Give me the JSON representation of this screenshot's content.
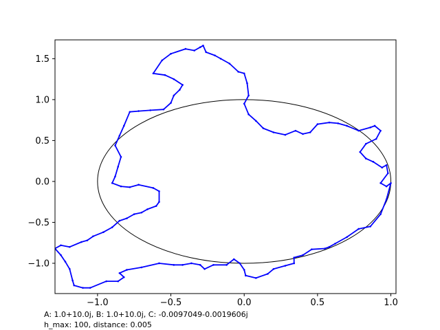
{
  "chart_data": {
    "type": "line",
    "xlim": [
      -1.29,
      1.035
    ],
    "ylim": [
      -1.37,
      1.73
    ],
    "xticks": [
      -1.0,
      -0.5,
      0.0,
      0.5,
      1.0
    ],
    "xtick_labels": [
      "−1.0",
      "−0.5",
      "0.0",
      "0.5",
      "1.0"
    ],
    "yticks": [
      -1.0,
      -0.5,
      0.0,
      0.5,
      1.0,
      1.5
    ],
    "ytick_labels": [
      "−1.0",
      "−0.5",
      "0.0",
      "0.5",
      "1.0",
      "1.5"
    ],
    "grid": false,
    "series": [
      {
        "kind": "circle",
        "color": "#000000",
        "center": [
          0,
          0
        ],
        "radius": 1.0
      },
      {
        "kind": "closed-curve",
        "color": "#0000ff",
        "markers": true,
        "points": [
          [
            1.0,
            -0.02
          ],
          [
            0.97,
            -0.22
          ],
          [
            0.93,
            -0.4
          ],
          [
            0.86,
            -0.55
          ],
          [
            0.78,
            -0.58
          ],
          [
            0.7,
            -0.68
          ],
          [
            0.62,
            -0.76
          ],
          [
            0.58,
            -0.8
          ],
          [
            0.55,
            -0.82
          ],
          [
            0.46,
            -0.83
          ],
          [
            0.4,
            -0.9
          ],
          [
            0.34,
            -0.93
          ],
          [
            0.34,
            -1.0
          ],
          [
            0.28,
            -1.03
          ],
          [
            0.2,
            -1.07
          ],
          [
            0.16,
            -1.13
          ],
          [
            0.08,
            -1.18
          ],
          [
            0.01,
            -1.15
          ],
          [
            0.0,
            -1.08
          ],
          [
            -0.03,
            -1.0
          ],
          [
            -0.07,
            -0.95
          ],
          [
            -0.12,
            -1.02
          ],
          [
            -0.21,
            -1.02
          ],
          [
            -0.27,
            -1.07
          ],
          [
            -0.3,
            -1.02
          ],
          [
            -0.36,
            -1.0
          ],
          [
            -0.42,
            -1.02
          ],
          [
            -0.48,
            -1.02
          ],
          [
            -0.58,
            -1.0
          ],
          [
            -0.7,
            -1.05
          ],
          [
            -0.8,
            -1.08
          ],
          [
            -0.85,
            -1.12
          ],
          [
            -0.82,
            -1.17
          ],
          [
            -0.86,
            -1.22
          ],
          [
            -0.94,
            -1.22
          ],
          [
            -1.05,
            -1.3
          ],
          [
            -1.1,
            -1.3
          ],
          [
            -1.16,
            -1.27
          ],
          [
            -1.17,
            -1.21
          ],
          [
            -1.19,
            -1.07
          ],
          [
            -1.22,
            -0.98
          ],
          [
            -1.25,
            -0.9
          ],
          [
            -1.29,
            -0.82
          ],
          [
            -1.25,
            -0.78
          ],
          [
            -1.19,
            -0.8
          ],
          [
            -1.11,
            -0.74
          ],
          [
            -1.07,
            -0.72
          ],
          [
            -1.03,
            -0.67
          ],
          [
            -0.96,
            -0.62
          ],
          [
            -0.9,
            -0.56
          ],
          [
            -0.85,
            -0.48
          ],
          [
            -0.8,
            -0.45
          ],
          [
            -0.75,
            -0.4
          ],
          [
            -0.7,
            -0.38
          ],
          [
            -0.66,
            -0.34
          ],
          [
            -0.6,
            -0.3
          ],
          [
            -0.58,
            -0.25
          ],
          [
            -0.58,
            -0.12
          ],
          [
            -0.62,
            -0.08
          ],
          [
            -0.72,
            -0.04
          ],
          [
            -0.78,
            -0.07
          ],
          [
            -0.84,
            -0.06
          ],
          [
            -0.9,
            -0.02
          ],
          [
            -0.88,
            0.06
          ],
          [
            -0.86,
            0.18
          ],
          [
            -0.84,
            0.3
          ],
          [
            -0.88,
            0.44
          ],
          [
            -0.85,
            0.56
          ],
          [
            -0.82,
            0.68
          ],
          [
            -0.78,
            0.85
          ],
          [
            -0.72,
            0.86
          ],
          [
            -0.64,
            0.87
          ],
          [
            -0.55,
            0.88
          ],
          [
            -0.5,
            0.96
          ],
          [
            -0.48,
            1.05
          ],
          [
            -0.44,
            1.12
          ],
          [
            -0.42,
            1.18
          ],
          [
            -0.48,
            1.25
          ],
          [
            -0.54,
            1.3
          ],
          [
            -0.62,
            1.32
          ],
          [
            -0.56,
            1.48
          ],
          [
            -0.5,
            1.56
          ],
          [
            -0.4,
            1.62
          ],
          [
            -0.34,
            1.6
          ],
          [
            -0.3,
            1.64
          ],
          [
            -0.28,
            1.66
          ],
          [
            -0.26,
            1.58
          ],
          [
            -0.2,
            1.54
          ],
          [
            -0.16,
            1.5
          ],
          [
            -0.1,
            1.44
          ],
          [
            -0.04,
            1.34
          ],
          [
            0.0,
            1.32
          ],
          [
            0.02,
            1.2
          ],
          [
            0.03,
            1.05
          ],
          [
            0.0,
            0.95
          ],
          [
            0.03,
            0.82
          ],
          [
            0.08,
            0.74
          ],
          [
            0.13,
            0.65
          ],
          [
            0.2,
            0.6
          ],
          [
            0.28,
            0.57
          ],
          [
            0.35,
            0.62
          ],
          [
            0.4,
            0.58
          ],
          [
            0.45,
            0.6
          ],
          [
            0.5,
            0.7
          ],
          [
            0.58,
            0.72
          ],
          [
            0.64,
            0.71
          ],
          [
            0.7,
            0.68
          ],
          [
            0.78,
            0.62
          ],
          [
            0.86,
            0.66
          ],
          [
            0.89,
            0.68
          ],
          [
            0.93,
            0.62
          ],
          [
            0.9,
            0.52
          ],
          [
            0.83,
            0.46
          ],
          [
            0.79,
            0.36
          ],
          [
            0.83,
            0.28
          ],
          [
            0.88,
            0.24
          ],
          [
            0.94,
            0.17
          ],
          [
            0.97,
            0.2
          ],
          [
            0.98,
            0.1
          ],
          [
            0.93,
            -0.02
          ],
          [
            0.97,
            -0.06
          ]
        ]
      }
    ]
  },
  "annotations": {
    "line1": "A: 1.0+10.0j, B: 1.0+10.0j, C: -0.0097049-0.0019606j",
    "line2": "h_max: 100, distance: 0.005"
  }
}
